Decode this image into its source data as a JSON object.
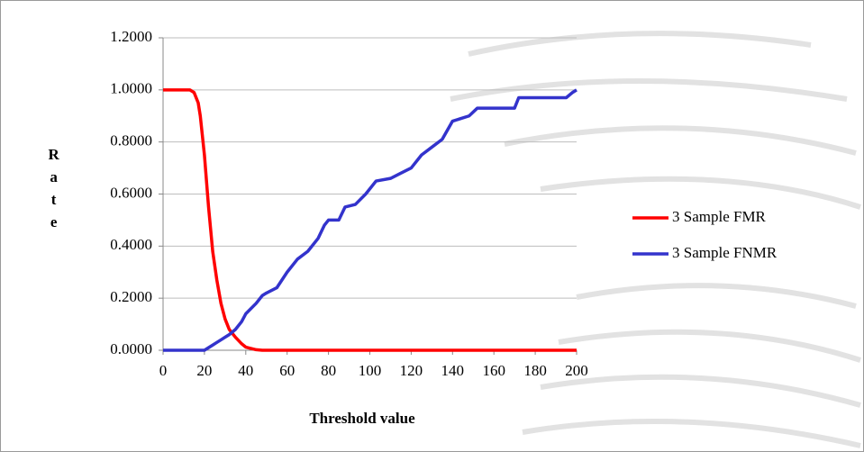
{
  "chart_data": {
    "type": "line",
    "x_label": "Threshold value",
    "y_label": "Rate",
    "x": [
      0,
      5,
      10,
      13,
      15,
      17,
      18,
      20,
      22,
      24,
      26,
      28,
      30,
      32,
      35,
      38,
      40,
      45,
      48,
      50,
      55,
      60,
      65,
      70,
      75,
      78,
      80,
      85,
      88,
      93,
      98,
      103,
      110,
      115,
      120,
      125,
      130,
      135,
      140,
      148,
      152,
      170,
      172,
      195,
      198,
      200
    ],
    "series": [
      {
        "name": "3 Sample FMR",
        "color": "#ff0000",
        "values": [
          1,
          1,
          1,
          1,
          0.99,
          0.95,
          0.9,
          0.75,
          0.55,
          0.38,
          0.27,
          0.18,
          0.12,
          0.08,
          0.05,
          0.025,
          0.012,
          0.002,
          0,
          0,
          0,
          0,
          0,
          0,
          0,
          0,
          0,
          0,
          0,
          0,
          0,
          0,
          0,
          0,
          0,
          0,
          0,
          0,
          0,
          0,
          0,
          0,
          0,
          0,
          0,
          0
        ]
      },
      {
        "name": "3 Sample FNMR",
        "color": "#3333cc",
        "values": [
          0,
          0,
          0,
          0,
          0,
          0,
          0,
          0,
          0.01,
          0.02,
          0.03,
          0.04,
          0.05,
          0.06,
          0.08,
          0.11,
          0.14,
          0.18,
          0.21,
          0.22,
          0.24,
          0.3,
          0.35,
          0.38,
          0.43,
          0.48,
          0.5,
          0.5,
          0.55,
          0.56,
          0.6,
          0.65,
          0.66,
          0.68,
          0.7,
          0.75,
          0.78,
          0.81,
          0.88,
          0.9,
          0.93,
          0.93,
          0.97,
          0.97,
          0.99,
          1.0
        ]
      }
    ],
    "xlim": [
      0,
      200
    ],
    "xticks": [
      0,
      20,
      40,
      60,
      80,
      100,
      120,
      140,
      160,
      180,
      200
    ],
    "ylim": [
      0,
      1.2
    ],
    "yticks": [
      {
        "value": 0,
        "label": "0.0000"
      },
      {
        "value": 0.2,
        "label": "0.2000"
      },
      {
        "value": 0.4,
        "label": "0.4000"
      },
      {
        "value": 0.6,
        "label": "0.6000"
      },
      {
        "value": 0.8,
        "label": "0.8000"
      },
      {
        "value": 1,
        "label": "1.0000"
      },
      {
        "value": 1.2,
        "label": "1.2000"
      }
    ],
    "grid": true,
    "legend": "right"
  }
}
